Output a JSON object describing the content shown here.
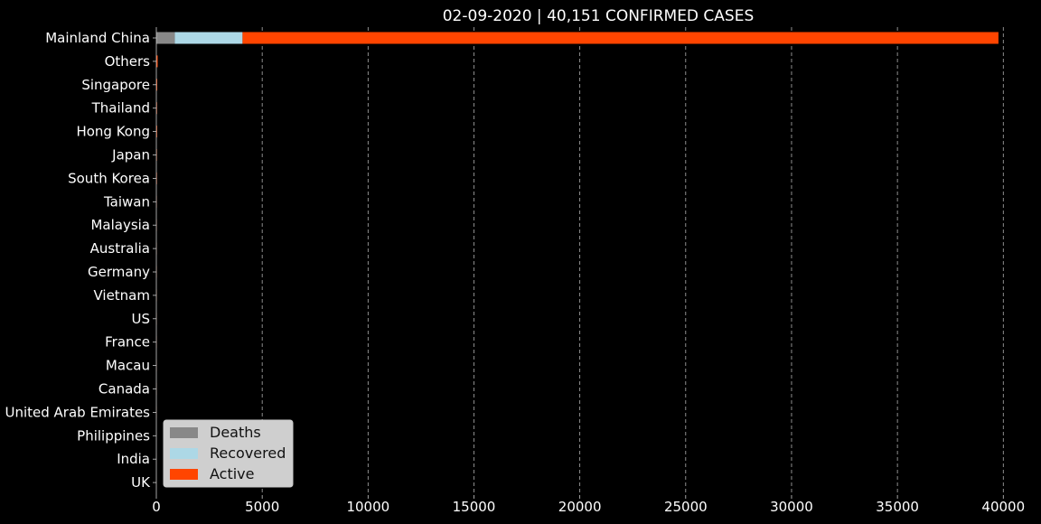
{
  "chart_data": {
    "type": "bar",
    "orientation": "horizontal",
    "stacked": true,
    "title": "02-09-2020 | 40,151 CONFIRMED CASES",
    "xlabel": "",
    "ylabel": "",
    "xlim": [
      0,
      40500
    ],
    "x_ticks": [
      0,
      5000,
      10000,
      15000,
      20000,
      25000,
      30000,
      35000,
      40000
    ],
    "x_tick_labels": [
      "0",
      "5000",
      "10000",
      "15000",
      "20000",
      "25000",
      "30000",
      "35000",
      "40000"
    ],
    "grid": "vertical dashed",
    "legend_position": "bottom-left",
    "categories": [
      "Mainland China",
      "Others",
      "Singapore",
      "Thailand",
      "Hong Kong",
      "Japan",
      "South Korea",
      "Taiwan",
      "Malaysia",
      "Australia",
      "Germany",
      "Vietnam",
      "US",
      "France",
      "Macau",
      "Canada",
      "United Arab Emirates",
      "Philippines",
      "India",
      "UK"
    ],
    "series": [
      {
        "name": "Deaths",
        "color": "#888888",
        "values": [
          871,
          0,
          0,
          0,
          1,
          0,
          0,
          0,
          0,
          0,
          0,
          0,
          0,
          0,
          0,
          0,
          0,
          1,
          0,
          0
        ]
      },
      {
        "name": "Recovered",
        "color": "#add8e6",
        "values": [
          3200,
          0,
          2,
          10,
          1,
          1,
          3,
          1,
          3,
          5,
          0,
          1,
          3,
          0,
          1,
          0,
          0,
          1,
          0,
          0
        ]
      },
      {
        "name": "Active",
        "color": "#ff4500",
        "values": [
          35700,
          64,
          38,
          22,
          34,
          25,
          24,
          17,
          15,
          10,
          14,
          13,
          9,
          11,
          9,
          7,
          7,
          1,
          3,
          3
        ]
      }
    ]
  }
}
